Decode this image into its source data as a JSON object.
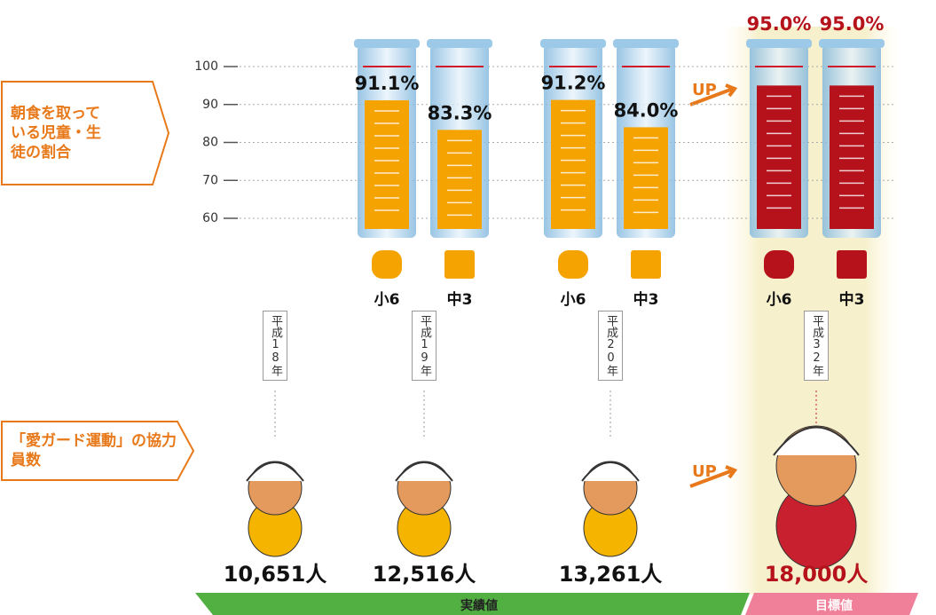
{
  "chart_data": {
    "type": "bar",
    "ylabel": "朝食を取っている児童・生徒の割合",
    "ylim": [
      60,
      100
    ],
    "yticks": [
      60,
      70,
      80,
      90,
      100
    ],
    "grid": true,
    "categories": [
      "平成18年",
      "平成19年",
      "平成20年",
      "平成32年"
    ],
    "target_index": 3,
    "target_color": "#b5121b",
    "series": [
      {
        "name": "小6",
        "color": "#f5a300",
        "values": [
          null,
          91.1,
          91.2,
          95.0
        ],
        "value_labels": [
          null,
          "91.1%",
          "91.2%",
          "95.0%"
        ]
      },
      {
        "name": "中3",
        "color": "#f5a300",
        "values": [
          null,
          83.3,
          84.0,
          95.0
        ],
        "value_labels": [
          null,
          "83.3%",
          "84.0%",
          "95.0%"
        ]
      }
    ],
    "counts": {
      "label": "「愛ガード運動」の協力員数",
      "values": [
        10651,
        12516,
        13261,
        18000
      ],
      "value_labels": [
        "10,651人",
        "12,516人",
        "13,261人",
        "18,000人"
      ]
    },
    "up_label": "UP",
    "actual_label": "実績値",
    "target_label": "目標値"
  }
}
